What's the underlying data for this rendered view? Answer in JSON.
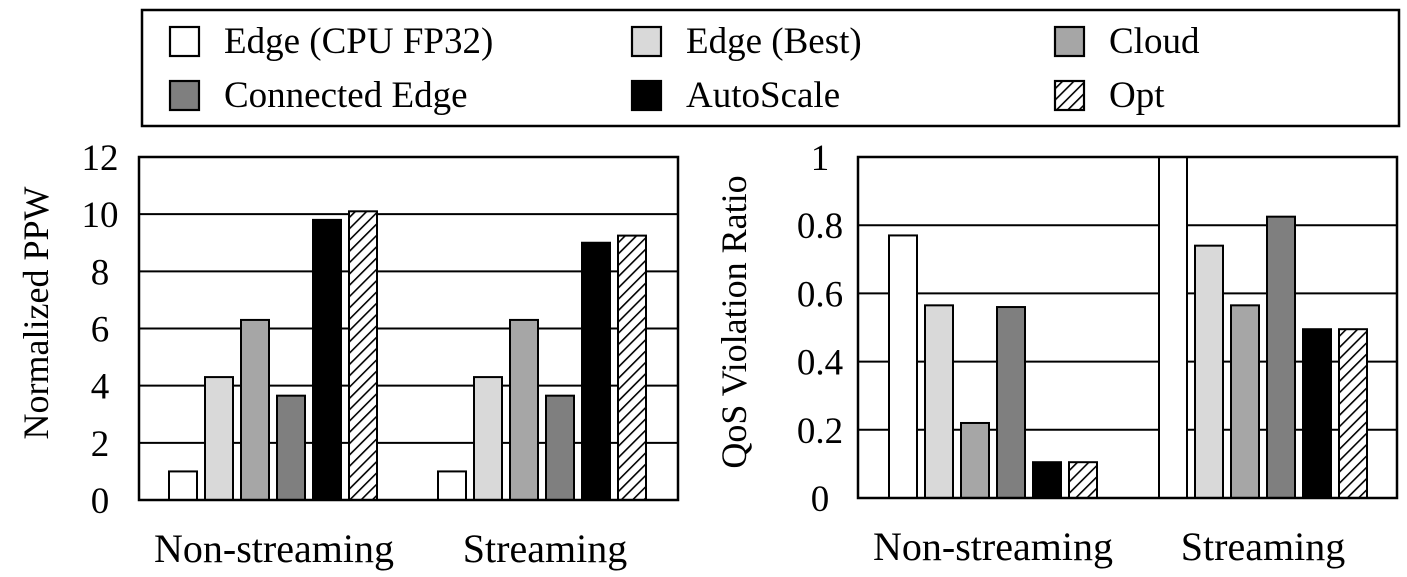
{
  "legend": {
    "placement": "top",
    "items": [
      {
        "label": "Edge (CPU FP32)",
        "fill": "#ffffff",
        "pattern": "none"
      },
      {
        "label": "Edge (Best)",
        "fill": "#d9d9d9",
        "pattern": "none"
      },
      {
        "label": "Cloud",
        "fill": "#a6a6a6",
        "pattern": "none"
      },
      {
        "label": "Connected Edge",
        "fill": "#7f7f7f",
        "pattern": "none"
      },
      {
        "label": "AutoScale",
        "fill": "#000000",
        "pattern": "none"
      },
      {
        "label": "Opt",
        "fill": "#ffffff",
        "pattern": "diagonal-hatch"
      }
    ]
  },
  "chart_data": [
    {
      "type": "bar",
      "title": "",
      "xlabel": "",
      "ylabel": "Normalized PPW",
      "ylim": [
        0,
        12
      ],
      "yticks": [
        "0",
        "2",
        "4",
        "6",
        "8",
        "10",
        "12"
      ],
      "grid": true,
      "categories": [
        "Non-streaming",
        "Streaming"
      ],
      "series": [
        {
          "name": "Edge (CPU FP32)",
          "values": [
            1.0,
            1.0
          ]
        },
        {
          "name": "Edge (Best)",
          "values": [
            4.3,
            4.3
          ]
        },
        {
          "name": "Cloud",
          "values": [
            6.3,
            6.3
          ]
        },
        {
          "name": "Connected Edge",
          "values": [
            3.65,
            3.65
          ]
        },
        {
          "name": "AutoScale",
          "values": [
            9.8,
            9.0
          ]
        },
        {
          "name": "Opt",
          "values": [
            10.1,
            9.25
          ]
        }
      ]
    },
    {
      "type": "bar",
      "title": "",
      "xlabel": "",
      "ylabel": "QoS Violation Ratio",
      "ylim": [
        0,
        1
      ],
      "yticks": [
        "0",
        "0.2",
        "0.4",
        "0.6",
        "0.8",
        "1"
      ],
      "grid": true,
      "categories": [
        "Non-streaming",
        "Streaming"
      ],
      "series": [
        {
          "name": "Edge (CPU FP32)",
          "values": [
            0.77,
            1.0
          ]
        },
        {
          "name": "Edge (Best)",
          "values": [
            0.565,
            0.74
          ]
        },
        {
          "name": "Cloud",
          "values": [
            0.22,
            0.565
          ]
        },
        {
          "name": "Connected Edge",
          "values": [
            0.56,
            0.825
          ]
        },
        {
          "name": "AutoScale",
          "values": [
            0.105,
            0.495
          ]
        },
        {
          "name": "Opt",
          "values": [
            0.105,
            0.495
          ]
        }
      ]
    }
  ]
}
